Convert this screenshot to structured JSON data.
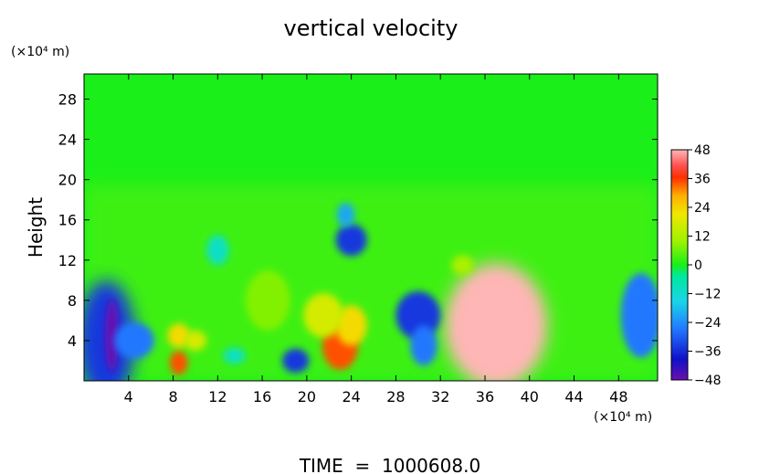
{
  "chart_data": {
    "type": "heatmap",
    "title": "vertical velocity",
    "ylabel": "Height",
    "y_units": "(×10⁴ m)",
    "x_units": "(×10⁴ m)",
    "footer": "TIME  =  1000608.0",
    "xlim": [
      0,
      51.5
    ],
    "ylim": [
      0,
      30.5
    ],
    "x_ticks": [
      4,
      8,
      12,
      16,
      20,
      24,
      28,
      32,
      36,
      40,
      44,
      48
    ],
    "y_ticks": [
      4,
      8,
      12,
      16,
      20,
      24,
      28
    ],
    "colorbar": {
      "range": [
        -48,
        48
      ],
      "ticks": [
        48,
        36,
        24,
        12,
        0,
        -12,
        -24,
        -36,
        -48
      ],
      "tick_labels": [
        "48",
        "36",
        "24",
        "12",
        "0",
        "−12",
        "−24",
        "−36",
        "−48"
      ]
    },
    "background_value": 0,
    "features": [
      {
        "x": 37.0,
        "y": 5.5,
        "rx": 4.6,
        "ry": 6.2,
        "value": 48
      },
      {
        "x": 37.0,
        "y": 5.5,
        "rx": 3.2,
        "ry": 4.2,
        "value": 48
      },
      {
        "x": 23.0,
        "y": 3.5,
        "rx": 1.6,
        "ry": 2.4,
        "value": 36
      },
      {
        "x": 24.0,
        "y": 5.5,
        "rx": 1.4,
        "ry": 2.0,
        "value": 24
      },
      {
        "x": 21.5,
        "y": 6.5,
        "rx": 1.8,
        "ry": 2.2,
        "value": 18
      },
      {
        "x": 8.5,
        "y": 1.8,
        "rx": 0.8,
        "ry": 1.2,
        "value": 36
      },
      {
        "x": 8.5,
        "y": 4.5,
        "rx": 1.0,
        "ry": 1.2,
        "value": 24
      },
      {
        "x": 10.0,
        "y": 4.0,
        "rx": 1.0,
        "ry": 1.0,
        "value": 18
      },
      {
        "x": 2.0,
        "y": 4.0,
        "rx": 2.6,
        "ry": 6.0,
        "value": -36
      },
      {
        "x": 2.5,
        "y": 4.5,
        "rx": 0.6,
        "ry": 3.6,
        "value": -48
      },
      {
        "x": 4.5,
        "y": 4.0,
        "rx": 1.8,
        "ry": 1.8,
        "value": -30
      },
      {
        "x": 19.0,
        "y": 2.0,
        "rx": 1.2,
        "ry": 1.2,
        "value": -36
      },
      {
        "x": 30.0,
        "y": 6.5,
        "rx": 2.0,
        "ry": 2.4,
        "value": -36
      },
      {
        "x": 30.5,
        "y": 3.5,
        "rx": 1.2,
        "ry": 2.0,
        "value": -30
      },
      {
        "x": 24.0,
        "y": 14.0,
        "rx": 1.4,
        "ry": 1.6,
        "value": -36
      },
      {
        "x": 23.5,
        "y": 16.5,
        "rx": 0.8,
        "ry": 1.2,
        "value": -24
      },
      {
        "x": 50.0,
        "y": 6.5,
        "rx": 1.8,
        "ry": 4.2,
        "value": -30
      },
      {
        "x": 13.5,
        "y": 2.5,
        "rx": 1.0,
        "ry": 0.8,
        "value": -12
      },
      {
        "x": 34.0,
        "y": 11.5,
        "rx": 1.0,
        "ry": 1.0,
        "value": 12
      },
      {
        "x": 12.0,
        "y": 13.0,
        "rx": 1.0,
        "ry": 1.5,
        "value": -12
      },
      {
        "x": 16.5,
        "y": 8.0,
        "rx": 2.0,
        "ry": 3.0,
        "value": 8
      }
    ]
  }
}
